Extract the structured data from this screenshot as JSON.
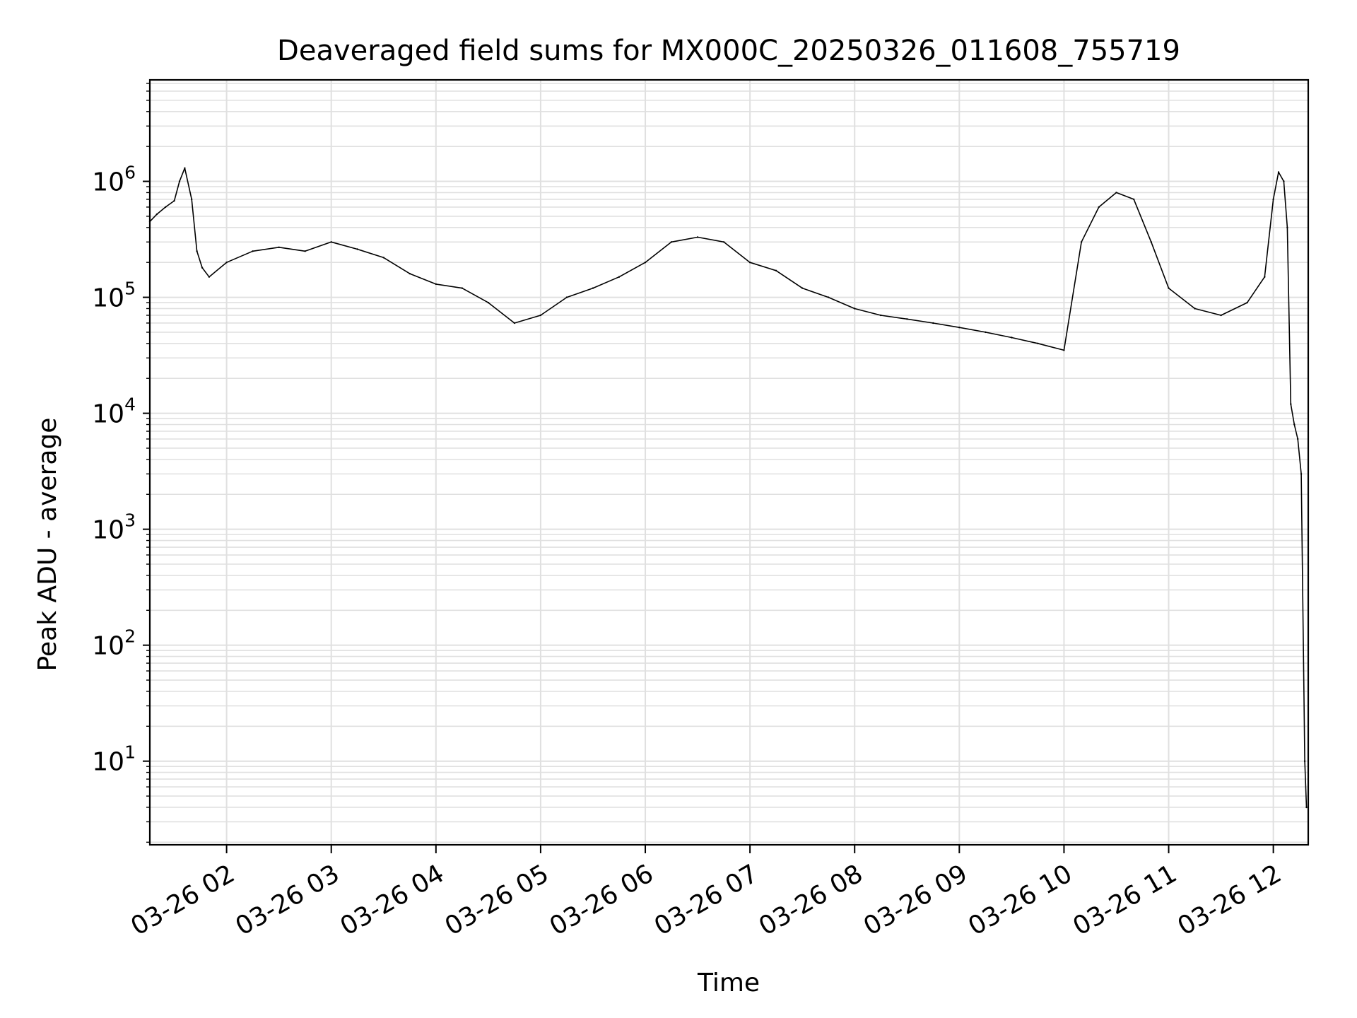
{
  "chart_data": {
    "type": "line",
    "title": "Deaveraged field sums for MX000C_20250326_011608_755719",
    "xlabel": "Time",
    "ylabel": "Peak ADU - average",
    "yscale": "log",
    "ylim": [
      1.9,
      7500000
    ],
    "xlim": [
      "03-26 01:16",
      "03-26 12:20"
    ],
    "grid": true,
    "legend": "none",
    "line_color": "#000000",
    "grid_color": "#e0e0e0",
    "x_ticks": [
      {
        "t": "03-26 02:00",
        "label": "03-26 02"
      },
      {
        "t": "03-26 03:00",
        "label": "03-26 03"
      },
      {
        "t": "03-26 04:00",
        "label": "03-26 04"
      },
      {
        "t": "03-26 05:00",
        "label": "03-26 05"
      },
      {
        "t": "03-26 06:00",
        "label": "03-26 06"
      },
      {
        "t": "03-26 07:00",
        "label": "03-26 07"
      },
      {
        "t": "03-26 08:00",
        "label": "03-26 08"
      },
      {
        "t": "03-26 09:00",
        "label": "03-26 09"
      },
      {
        "t": "03-26 10:00",
        "label": "03-26 10"
      },
      {
        "t": "03-26 11:00",
        "label": "03-26 11"
      },
      {
        "t": "03-26 12:00",
        "label": "03-26 12"
      }
    ],
    "y_ticks": [
      {
        "value": 10,
        "base": "10",
        "exp": "1"
      },
      {
        "value": 100,
        "base": "10",
        "exp": "2"
      },
      {
        "value": 1000,
        "base": "10",
        "exp": "3"
      },
      {
        "value": 10000,
        "base": "10",
        "exp": "4"
      },
      {
        "value": 100000,
        "base": "10",
        "exp": "5"
      },
      {
        "value": 1000000,
        "base": "10",
        "exp": "6"
      }
    ],
    "series": [
      {
        "x": [
          "03-26 01:16",
          "03-26 01:20",
          "03-26 01:25",
          "03-26 01:30",
          "03-26 01:33",
          "03-26 01:36",
          "03-26 01:40",
          "03-26 01:43",
          "03-26 01:46",
          "03-26 01:50",
          "03-26 02:00",
          "03-26 02:15",
          "03-26 02:30",
          "03-26 02:45",
          "03-26 03:00",
          "03-26 03:15",
          "03-26 03:30",
          "03-26 03:45",
          "03-26 04:00",
          "03-26 04:15",
          "03-26 04:30",
          "03-26 04:45",
          "03-26 05:00",
          "03-26 05:15",
          "03-26 05:30",
          "03-26 05:45",
          "03-26 06:00",
          "03-26 06:15",
          "03-26 06:30",
          "03-26 06:45",
          "03-26 07:00",
          "03-26 07:15",
          "03-26 07:30",
          "03-26 07:45",
          "03-26 08:00",
          "03-26 08:15",
          "03-26 08:30",
          "03-26 08:45",
          "03-26 09:00",
          "03-26 09:15",
          "03-26 09:30",
          "03-26 09:45",
          "03-26 10:00",
          "03-26 10:10",
          "03-26 10:20",
          "03-26 10:30",
          "03-26 10:40",
          "03-26 10:50",
          "03-26 11:00",
          "03-26 11:15",
          "03-26 11:30",
          "03-26 11:45",
          "03-26 11:55",
          "03-26 12:00",
          "03-26 12:03",
          "03-26 12:06",
          "03-26 12:08",
          "03-26 12:10",
          "03-26 12:12",
          "03-26 12:14",
          "03-26 12:16",
          "03-26 12:18",
          "03-26 12:19"
        ],
        "y": [
          450000,
          520000,
          600000,
          680000,
          1000000,
          1300000,
          700000,
          250000,
          180000,
          150000,
          200000,
          250000,
          270000,
          250000,
          300000,
          260000,
          220000,
          160000,
          130000,
          120000,
          90000,
          60000,
          70000,
          100000,
          120000,
          150000,
          200000,
          300000,
          330000,
          300000,
          200000,
          170000,
          120000,
          100000,
          80000,
          70000,
          65000,
          60000,
          55000,
          50000,
          45000,
          40000,
          35000,
          300000,
          600000,
          800000,
          700000,
          300000,
          120000,
          80000,
          70000,
          90000,
          150000,
          700000,
          1200000,
          1000000,
          400000,
          12000,
          8000,
          6000,
          3000,
          10,
          4
        ]
      }
    ]
  }
}
